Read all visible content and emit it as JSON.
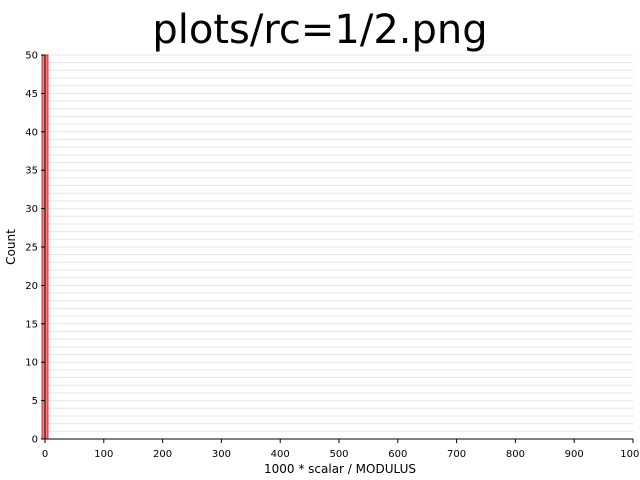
{
  "chart_data": {
    "type": "bar",
    "title": "plots/rc=1/2.png",
    "xlabel": "1000 * scalar / MODULUS",
    "ylabel": "Count",
    "xlim": [
      0,
      1000
    ],
    "ylim": [
      0,
      50
    ],
    "x_ticks": [
      "0",
      "100",
      "200",
      "300",
      "400",
      "500",
      "600",
      "700",
      "800",
      "900",
      "1000"
    ],
    "y_ticks": [
      "0",
      "5",
      "10",
      "15",
      "20",
      "25",
      "30",
      "35",
      "40",
      "45",
      "50"
    ],
    "grid": true,
    "bins": [
      {
        "x_start": -5,
        "x_end": 5,
        "count": 50
      }
    ],
    "colors": {
      "bar_fill": "#ff7f7f",
      "bar_edge": "#d62728",
      "grid": "#e6e6e6"
    }
  }
}
